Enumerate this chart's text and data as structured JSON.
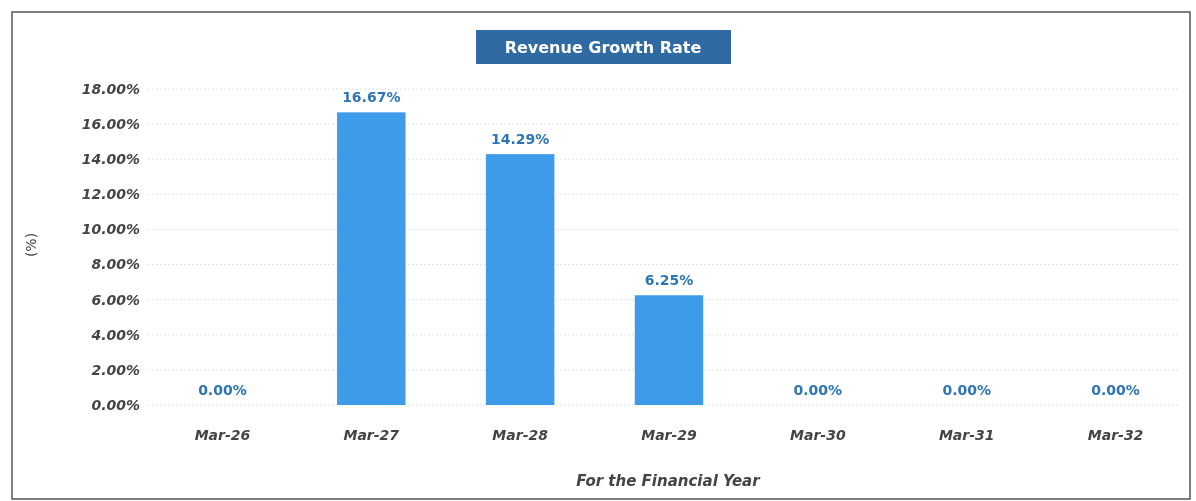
{
  "chart_data": {
    "type": "bar",
    "title": "Revenue Growth Rate",
    "xlabel": "For the Financial Year",
    "ylabel": "(%)",
    "categories": [
      "Mar-26",
      "Mar-27",
      "Mar-28",
      "Mar-29",
      "Mar-30",
      "Mar-31",
      "Mar-32"
    ],
    "values": [
      0,
      16.67,
      14.29,
      6.25,
      0,
      0,
      0
    ],
    "value_labels": [
      "0.00%",
      "16.67%",
      "14.29%",
      "6.25%",
      "0.00%",
      "0.00%",
      "0.00%"
    ],
    "color": "#3d9be9",
    "ylim": [
      0,
      18
    ],
    "yticks": [
      {
        "value": 0,
        "label": "0.00%"
      },
      {
        "value": 2,
        "label": "2.00%"
      },
      {
        "value": 4,
        "label": "4.00%"
      },
      {
        "value": 6,
        "label": "6.00%"
      },
      {
        "value": 8,
        "label": "8.00%"
      },
      {
        "value": 10,
        "label": "10.00%"
      },
      {
        "value": 12,
        "label": "12.00%"
      },
      {
        "value": 14,
        "label": "14.00%"
      },
      {
        "value": 16,
        "label": "16.00%"
      },
      {
        "value": 18,
        "label": "18.00%"
      }
    ],
    "grid": "y"
  }
}
